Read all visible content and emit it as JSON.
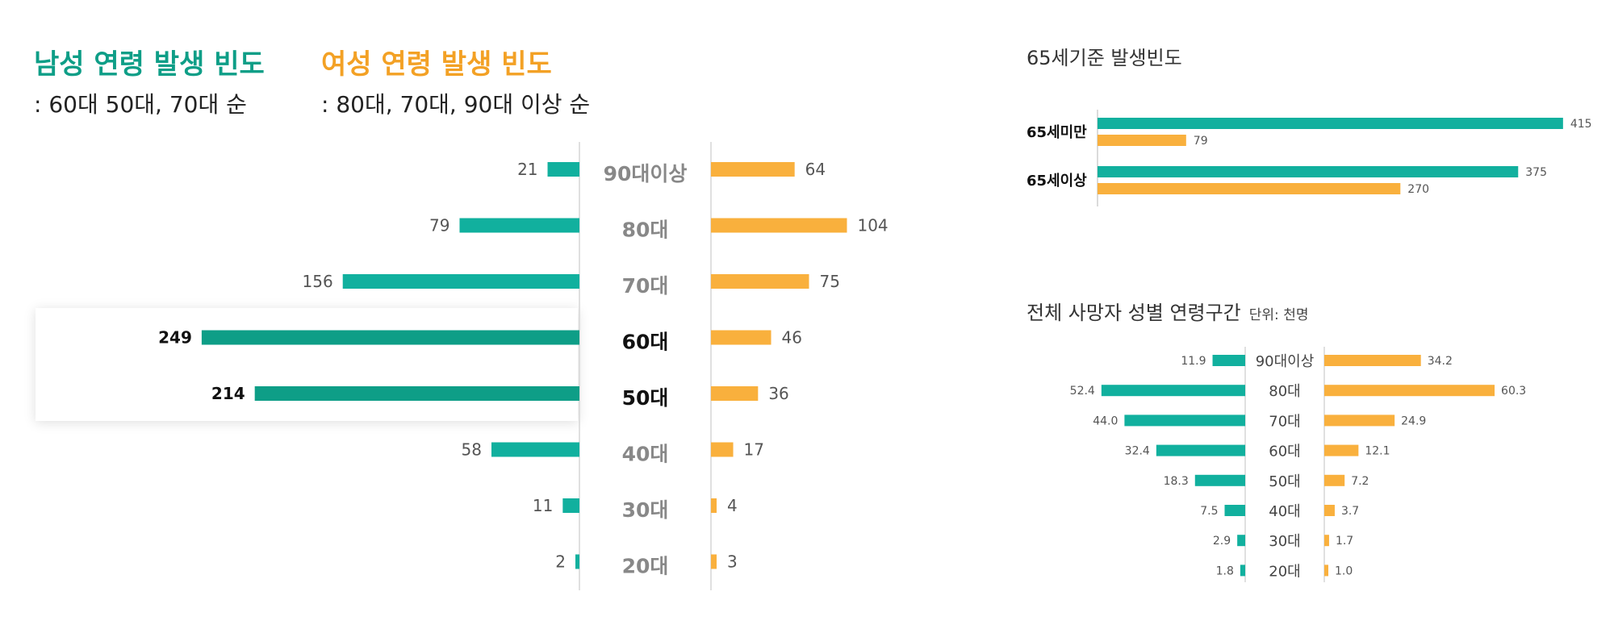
{
  "header": {
    "male_title": "남성 연령 발생 빈도",
    "male_sub": ": 60대  50대, 70대 순",
    "female_title": "여성 연령 발생 빈도",
    "female_sub": ": 80대, 70대, 90대 이상 순"
  },
  "colors": {
    "male": "#11b09e",
    "male_highlight": "#0e9e87",
    "female": "#f9b03d"
  },
  "chart_data": [
    {
      "type": "bar",
      "title": "",
      "orientation": "horizontal-butterfly",
      "categories": [
        "90대이상",
        "80대",
        "70대",
        "60대",
        "50대",
        "40대",
        "30대",
        "20대"
      ],
      "series": [
        {
          "name": "남성",
          "values": [
            21,
            79,
            156,
            249,
            214,
            58,
            11,
            2
          ]
        },
        {
          "name": "여성",
          "values": [
            64,
            104,
            75,
            46,
            36,
            17,
            4,
            3
          ]
        }
      ],
      "highlighted": [
        "60대",
        "50대"
      ]
    },
    {
      "type": "bar",
      "title": "65세기준 발생빈도",
      "orientation": "horizontal-grouped",
      "categories": [
        "65세미만",
        "65세이상"
      ],
      "series": [
        {
          "name": "남성",
          "values": [
            415,
            375
          ]
        },
        {
          "name": "여성",
          "values": [
            79,
            270
          ]
        }
      ]
    },
    {
      "type": "bar",
      "title": "전체 사망자 성별 연령구간",
      "unit": "단위: 천명",
      "orientation": "horizontal-butterfly",
      "categories": [
        "90대이상",
        "80대",
        "70대",
        "60대",
        "50대",
        "40대",
        "30대",
        "20대"
      ],
      "series": [
        {
          "name": "남성",
          "values": [
            "11.9",
            "52.4",
            "44.0",
            "32.4",
            "18.3",
            "7.5",
            "2.9",
            "1.8"
          ]
        },
        {
          "name": "여성",
          "values": [
            "34.2",
            "60.3",
            "24.9",
            "12.1",
            "7.2",
            "3.7",
            "1.7",
            "1.0"
          ]
        }
      ]
    }
  ]
}
